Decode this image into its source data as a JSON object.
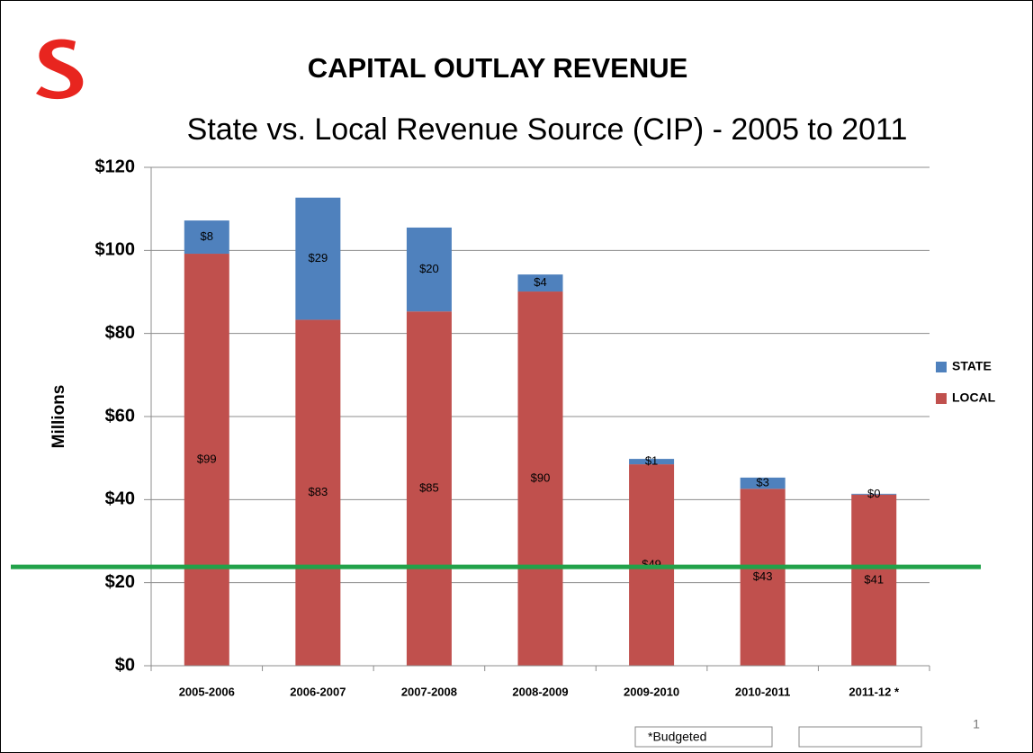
{
  "chart_data": {
    "type": "stacked_bar",
    "title": "CAPITAL OUTLAY REVENUE",
    "subtitle": "State vs. Local Revenue Source (CIP) - 2005 to 2011",
    "y_label": "Millions",
    "categories": [
      "2005-2006",
      "2006-2007",
      "2007-2008",
      "2008-2009",
      "2009-2010",
      "2010-2011",
      "2011-12 *"
    ],
    "series": [
      {
        "name": "LOCAL",
        "color": "#c0504d",
        "values": [
          99.2,
          83.3,
          85.3,
          90.1,
          48.5,
          42.6,
          41.2
        ],
        "value_labels": [
          "$99",
          "$83",
          "$85",
          "$90",
          "$49",
          "$43",
          "$41"
        ]
      },
      {
        "name": "STATE",
        "color": "#4f81bd",
        "values": [
          8,
          29.4,
          20.2,
          4.1,
          1.3,
          2.7,
          0.2
        ],
        "value_labels": [
          "$8",
          "$29",
          "$20",
          "$4",
          "$1",
          "$3",
          "$0"
        ]
      }
    ],
    "ylim": [
      0,
      120
    ],
    "yticks": [
      {
        "value": 0,
        "label": "$0"
      },
      {
        "value": 20,
        "label": "$20"
      },
      {
        "value": 40,
        "label": "$40"
      },
      {
        "value": 60,
        "label": "$60"
      },
      {
        "value": 80,
        "label": "$80"
      },
      {
        "value": 100,
        "label": "$100"
      },
      {
        "value": 120,
        "label": "$120"
      }
    ],
    "grid": true,
    "legend": "right",
    "reference_line": {
      "value": 23.8,
      "color": "#22a24a"
    },
    "footnote": "*Budgeted",
    "page_number": "1"
  }
}
